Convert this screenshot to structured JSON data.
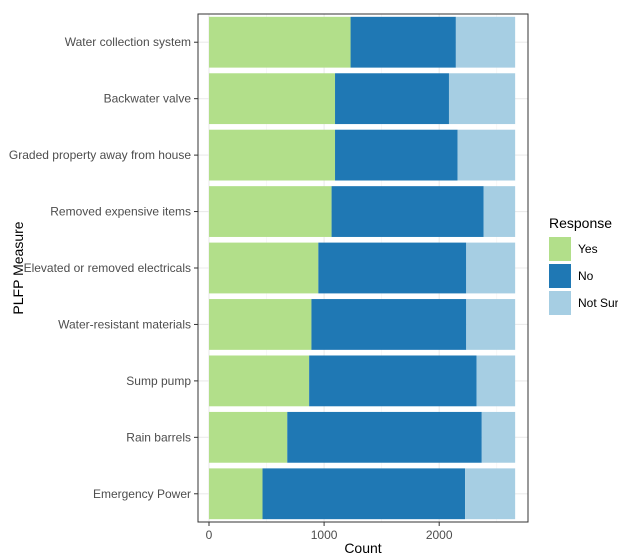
{
  "chart_data": {
    "type": "bar",
    "orientation": "horizontal",
    "stacked": true,
    "xlabel": "Count",
    "ylabel": "PLFP Measure",
    "xlim": [
      0,
      2650
    ],
    "xticks": [
      0,
      1000,
      2000
    ],
    "grid": true,
    "legend": {
      "title": "Response",
      "placement": "right"
    },
    "categories": [
      "Water collection system",
      "Backwater valve",
      "Graded property away from house",
      "Removed expensive items",
      "Elevated or removed electricals",
      "Water-resistant materials",
      "Sump pump",
      "Rain barrels",
      "Emergency Power"
    ],
    "series": [
      {
        "name": "Yes",
        "color": "#b2df8a",
        "values": [
          1230,
          1095,
          1095,
          1065,
          950,
          890,
          870,
          680,
          465
        ]
      },
      {
        "name": "No",
        "color": "#1f78b4",
        "values": [
          915,
          990,
          1065,
          1320,
          1285,
          1345,
          1455,
          1690,
          1760
        ]
      },
      {
        "name": "Not Sure",
        "color": "#a6cee3",
        "values": [
          515,
          575,
          500,
          275,
          425,
          425,
          335,
          290,
          435
        ]
      }
    ]
  }
}
